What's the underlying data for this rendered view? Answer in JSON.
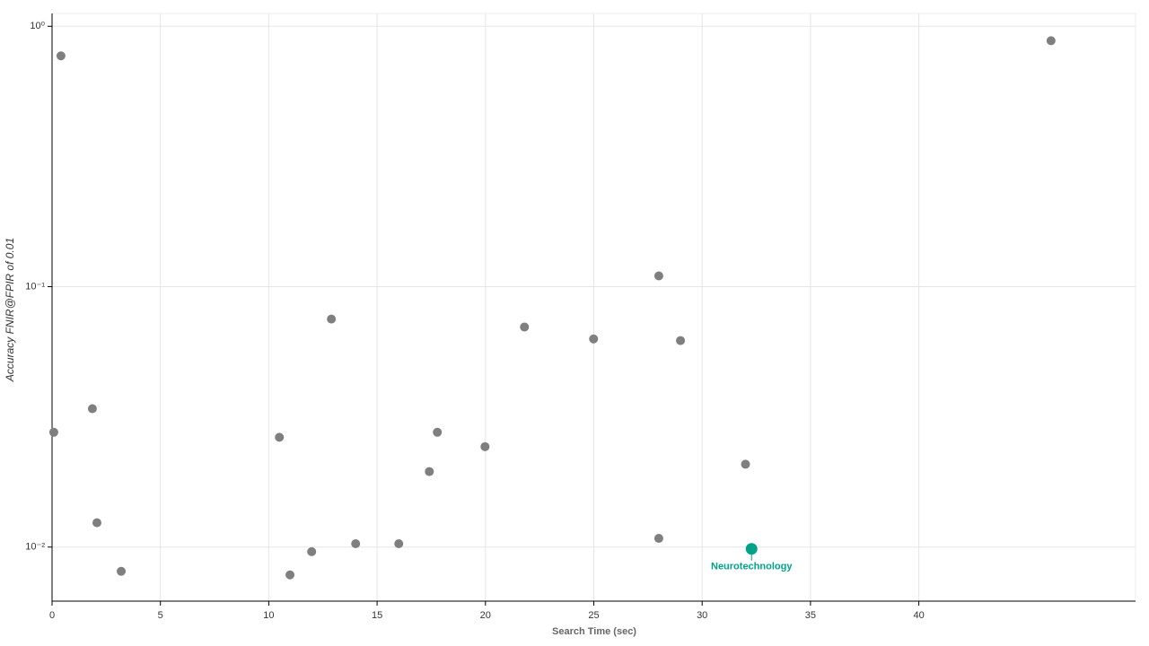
{
  "chart_data": {
    "type": "scatter",
    "xlabel": "Search Time (sec)",
    "ylabel": "Accuracy FNIR@FPIR of 0.01",
    "xlim": [
      0,
      50
    ],
    "xticks": [
      0,
      5,
      10,
      15,
      20,
      25,
      30,
      35,
      40
    ],
    "ylim": [
      0.0062,
      1.12
    ],
    "ylog": true,
    "yticks": [
      {
        "value": 1,
        "label": "10⁰"
      },
      {
        "value": 0.1,
        "label": "10⁻¹"
      },
      {
        "value": 0.01,
        "label": "10⁻²"
      }
    ],
    "grid": true,
    "color": "#7f7f7f",
    "x": [
      0.41,
      46.1,
      0.08,
      1.86,
      2.07,
      3.19,
      10.49,
      12.89,
      10.98,
      11.98,
      14.01,
      16.0,
      17.41,
      17.78,
      19.98,
      21.8,
      24.99,
      28.0,
      29.0,
      28.0,
      32.0
    ],
    "values": [
      0.77,
      0.88,
      0.0276,
      0.034,
      0.0124,
      0.00807,
      0.0264,
      0.0751,
      0.00782,
      0.0096,
      0.0103,
      0.0103,
      0.0195,
      0.0276,
      0.0243,
      0.07,
      0.063,
      0.11,
      0.0621,
      0.0108,
      0.0208
    ],
    "highlight": {
      "label": "Neurotechnology",
      "x": 32.28,
      "value": 0.00984,
      "color": "#00a388"
    }
  }
}
